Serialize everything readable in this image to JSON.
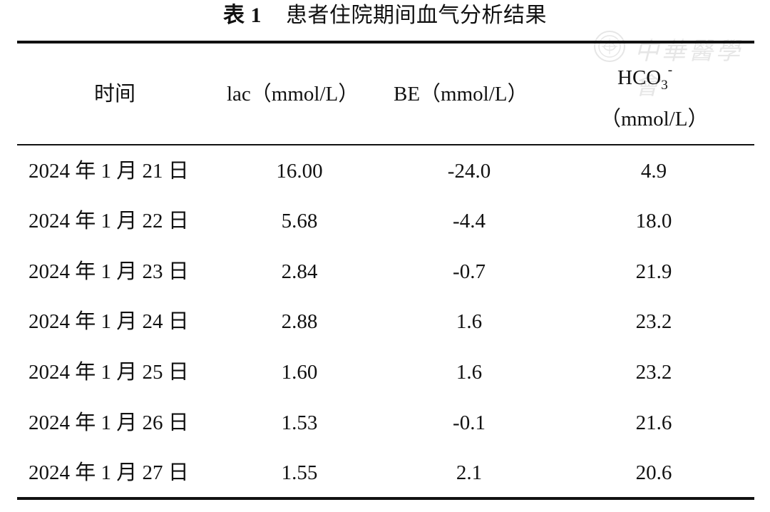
{
  "title": {
    "label": "表 1",
    "text": "患者住院期间血气分析结果"
  },
  "watermark": {
    "text": "中華醫學會"
  },
  "table": {
    "headers": {
      "time": "时间",
      "lac": "lac（mmol/L）",
      "be": "BE（mmol/L）",
      "hco3_base": "HCO",
      "hco3_sub": "3",
      "hco3_sup": "-",
      "hco3_unit": "（mmol/L）"
    },
    "rows": [
      {
        "date": "2024 年 1 月 21 日",
        "lac": "16.00",
        "be": "-24.0",
        "hco3": "4.9"
      },
      {
        "date": "2024 年 1 月 22 日",
        "lac": "5.68",
        "be": "-4.4",
        "hco3": "18.0"
      },
      {
        "date": "2024 年 1 月 23 日",
        "lac": "2.84",
        "be": "-0.7",
        "hco3": "21.9"
      },
      {
        "date": "2024 年 1 月 24 日",
        "lac": "2.88",
        "be": "1.6",
        "hco3": "23.2"
      },
      {
        "date": "2024 年 1 月 25 日",
        "lac": "1.60",
        "be": "1.6",
        "hco3": "23.2"
      },
      {
        "date": "2024 年 1 月 26 日",
        "lac": "1.53",
        "be": "-0.1",
        "hco3": "21.6"
      },
      {
        "date": "2024 年 1 月 27 日",
        "lac": "1.55",
        "be": "2.1",
        "hco3": "20.6"
      }
    ]
  }
}
